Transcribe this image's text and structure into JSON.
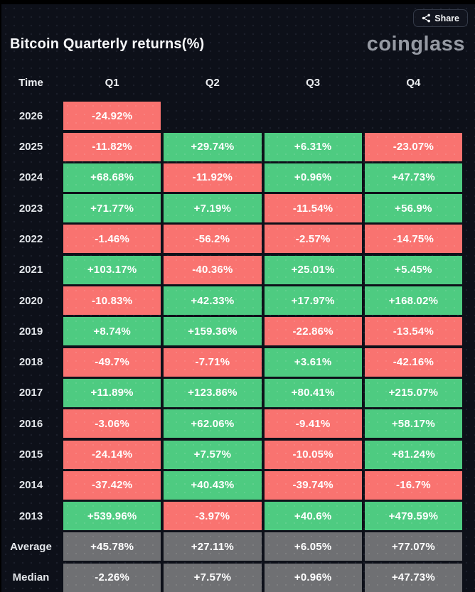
{
  "header": {
    "title": "Bitcoin Quarterly returns(%)",
    "brand": "coinglass",
    "share_label": "Share"
  },
  "colors": {
    "green": "#4ecb81",
    "red": "#f97370",
    "gray": "#6f7073",
    "background": "#0d1019",
    "cell_text": "#ffffff"
  },
  "chart_data": {
    "type": "table",
    "title": "Bitcoin Quarterly returns(%)",
    "columns": [
      "Time",
      "Q1",
      "Q2",
      "Q3",
      "Q4"
    ],
    "rows": [
      {
        "label": "2026",
        "cells": [
          {
            "v": "-24.92%",
            "c": "red"
          },
          null,
          null,
          null
        ]
      },
      {
        "label": "2025",
        "cells": [
          {
            "v": "-11.82%",
            "c": "red"
          },
          {
            "v": "+29.74%",
            "c": "green"
          },
          {
            "v": "+6.31%",
            "c": "green"
          },
          {
            "v": "-23.07%",
            "c": "red"
          }
        ]
      },
      {
        "label": "2024",
        "cells": [
          {
            "v": "+68.68%",
            "c": "green"
          },
          {
            "v": "-11.92%",
            "c": "red"
          },
          {
            "v": "+0.96%",
            "c": "green"
          },
          {
            "v": "+47.73%",
            "c": "green"
          }
        ]
      },
      {
        "label": "2023",
        "cells": [
          {
            "v": "+71.77%",
            "c": "green"
          },
          {
            "v": "+7.19%",
            "c": "green"
          },
          {
            "v": "-11.54%",
            "c": "red"
          },
          {
            "v": "+56.9%",
            "c": "green"
          }
        ]
      },
      {
        "label": "2022",
        "cells": [
          {
            "v": "-1.46%",
            "c": "red"
          },
          {
            "v": "-56.2%",
            "c": "red"
          },
          {
            "v": "-2.57%",
            "c": "red"
          },
          {
            "v": "-14.75%",
            "c": "red"
          }
        ]
      },
      {
        "label": "2021",
        "cells": [
          {
            "v": "+103.17%",
            "c": "green"
          },
          {
            "v": "-40.36%",
            "c": "red"
          },
          {
            "v": "+25.01%",
            "c": "green"
          },
          {
            "v": "+5.45%",
            "c": "green"
          }
        ]
      },
      {
        "label": "2020",
        "cells": [
          {
            "v": "-10.83%",
            "c": "red"
          },
          {
            "v": "+42.33%",
            "c": "green"
          },
          {
            "v": "+17.97%",
            "c": "green"
          },
          {
            "v": "+168.02%",
            "c": "green"
          }
        ]
      },
      {
        "label": "2019",
        "cells": [
          {
            "v": "+8.74%",
            "c": "green"
          },
          {
            "v": "+159.36%",
            "c": "green"
          },
          {
            "v": "-22.86%",
            "c": "red"
          },
          {
            "v": "-13.54%",
            "c": "red"
          }
        ]
      },
      {
        "label": "2018",
        "cells": [
          {
            "v": "-49.7%",
            "c": "red"
          },
          {
            "v": "-7.71%",
            "c": "red"
          },
          {
            "v": "+3.61%",
            "c": "green"
          },
          {
            "v": "-42.16%",
            "c": "red"
          }
        ]
      },
      {
        "label": "2017",
        "cells": [
          {
            "v": "+11.89%",
            "c": "green"
          },
          {
            "v": "+123.86%",
            "c": "green"
          },
          {
            "v": "+80.41%",
            "c": "green"
          },
          {
            "v": "+215.07%",
            "c": "green"
          }
        ]
      },
      {
        "label": "2016",
        "cells": [
          {
            "v": "-3.06%",
            "c": "red"
          },
          {
            "v": "+62.06%",
            "c": "green"
          },
          {
            "v": "-9.41%",
            "c": "red"
          },
          {
            "v": "+58.17%",
            "c": "green"
          }
        ]
      },
      {
        "label": "2015",
        "cells": [
          {
            "v": "-24.14%",
            "c": "red"
          },
          {
            "v": "+7.57%",
            "c": "green"
          },
          {
            "v": "-10.05%",
            "c": "red"
          },
          {
            "v": "+81.24%",
            "c": "green"
          }
        ]
      },
      {
        "label": "2014",
        "cells": [
          {
            "v": "-37.42%",
            "c": "red"
          },
          {
            "v": "+40.43%",
            "c": "green"
          },
          {
            "v": "-39.74%",
            "c": "red"
          },
          {
            "v": "-16.7%",
            "c": "red"
          }
        ]
      },
      {
        "label": "2013",
        "cells": [
          {
            "v": "+539.96%",
            "c": "green"
          },
          {
            "v": "-3.97%",
            "c": "red"
          },
          {
            "v": "+40.6%",
            "c": "green"
          },
          {
            "v": "+479.59%",
            "c": "green"
          }
        ]
      },
      {
        "label": "Average",
        "cells": [
          {
            "v": "+45.78%",
            "c": "gray"
          },
          {
            "v": "+27.11%",
            "c": "gray"
          },
          {
            "v": "+6.05%",
            "c": "gray"
          },
          {
            "v": "+77.07%",
            "c": "gray"
          }
        ]
      },
      {
        "label": "Median",
        "cells": [
          {
            "v": "-2.26%",
            "c": "gray"
          },
          {
            "v": "+7.57%",
            "c": "gray"
          },
          {
            "v": "+0.96%",
            "c": "gray"
          },
          {
            "v": "+47.73%",
            "c": "gray"
          }
        ]
      }
    ]
  }
}
